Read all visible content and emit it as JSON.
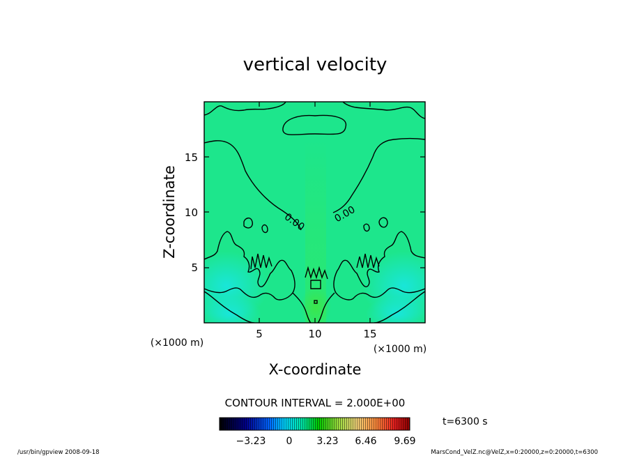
{
  "chart_data": {
    "type": "heatmap",
    "title": "vertical velocity",
    "xlabel": "X-coordinate",
    "ylabel": "Z-coordinate",
    "x_unit": "(×1000 m)",
    "y_unit": "(×1000 m)",
    "xlim": [
      0,
      20
    ],
    "ylim": [
      0,
      20
    ],
    "x_ticks": [
      5,
      10,
      15
    ],
    "y_ticks": [
      5,
      10,
      15
    ],
    "contour_interval_text": "CONTOUR INTERVAL = 2.000E+00",
    "contour_labels": [
      "0.00",
      "0.00"
    ],
    "colorbar_ticks": [
      "−3.23",
      "0",
      "3.23",
      "6.46",
      "9.69"
    ],
    "colorbar_range": [
      -6.46,
      12.92
    ],
    "time_label": "t=6300 s",
    "footer_left": "/usr/bin/gpview   2008-09-18",
    "footer_right": "MarsCond_VelZ.nc@VelZ,x=0:20000,z=0:20000,t=6300",
    "colors": {
      "field_base": "#1de68c",
      "field_low": "#18e6e6",
      "field_high": "#2ee84e"
    }
  }
}
